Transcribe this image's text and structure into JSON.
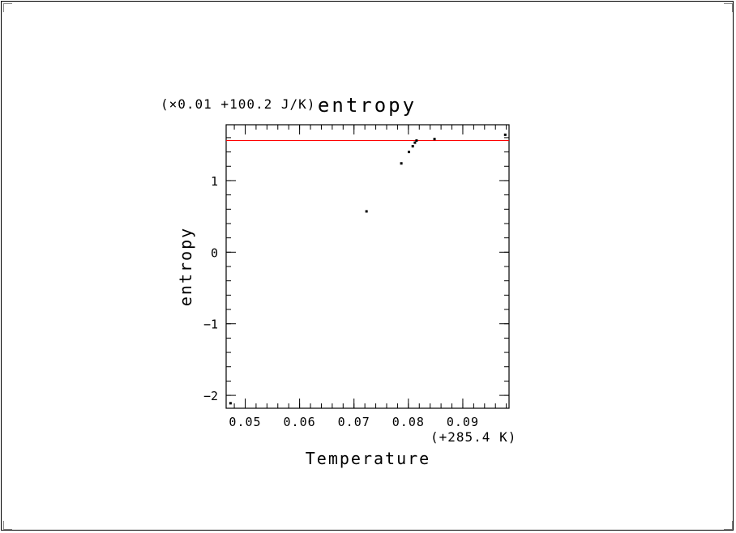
{
  "chart_data": {
    "type": "scatter",
    "title": "entropy",
    "xlabel": "Temperature",
    "ylabel": "entropy",
    "x_offset_label": "(+285.4 K)",
    "y_offset_label": "(×0.01 +100.2 J/K)",
    "xlim": [
      0.0465,
      0.0985
    ],
    "ylim": [
      -2.18,
      1.78
    ],
    "x_ticks": [
      0.05,
      0.06,
      0.07,
      0.08,
      0.09
    ],
    "x_tick_labels": [
      "0.05",
      "0.06",
      "0.07",
      "0.08",
      "0.09"
    ],
    "y_ticks": [
      -2,
      -1,
      0,
      1
    ],
    "y_tick_labels": [
      "−2",
      "−1",
      "0",
      "1"
    ],
    "grid": false,
    "reference_line": {
      "y": 1.56,
      "color": "#ff0000"
    },
    "points_color": "#000000",
    "series": [
      {
        "x": [
          0.0473,
          0.0723,
          0.0787,
          0.0801,
          0.0808,
          0.0812,
          0.0815,
          0.0848,
          0.0978
        ],
        "y": [
          -2.11,
          0.57,
          1.24,
          1.4,
          1.48,
          1.53,
          1.56,
          1.58,
          1.64
        ]
      }
    ]
  }
}
